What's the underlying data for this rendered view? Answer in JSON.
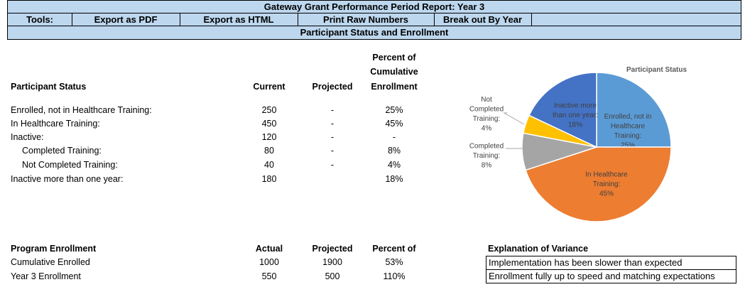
{
  "title": "Gateway Grant Performance Period Report: Year 3",
  "toolbar": {
    "label": "Tools:",
    "buttons": [
      "Export as PDF",
      "Export as HTML",
      "Print Raw Numbers",
      "Break out By Year"
    ]
  },
  "section_title": "Participant Status and Enrollment",
  "status_table": {
    "headers": {
      "label": "Participant Status",
      "current": "Current",
      "projected": "Projected",
      "percent": [
        "Percent of",
        "Cumulative",
        "Enrollment"
      ]
    },
    "rows": [
      {
        "label": "Enrolled, not in Healthcare Training:",
        "current": "250",
        "projected": "-",
        "percent": "25%"
      },
      {
        "label": "In Healthcare Training:",
        "current": "450",
        "projected": "-",
        "percent": "45%"
      },
      {
        "label": "Inactive:",
        "current": "120",
        "projected": "-",
        "percent": "-"
      },
      {
        "label": "Completed Training:",
        "current": "80",
        "projected": "-",
        "percent": "8%"
      },
      {
        "label": "Not Completed Training:",
        "current": "40",
        "projected": "-",
        "percent": "4%"
      },
      {
        "label": "Inactive more than one year:",
        "current": "180",
        "projected": "",
        "percent": "18%"
      }
    ]
  },
  "enrollment_table": {
    "headers": {
      "label": "Program Enrollment",
      "actual": "Actual",
      "projected": "Projected",
      "percent": "Percent of"
    },
    "rows": [
      {
        "label": "Cumulative Enrolled",
        "actual": "1000",
        "projected": "1900",
        "percent": "53%"
      },
      {
        "label": "Year 3 Enrollment",
        "actual": "550",
        "projected": "500",
        "percent": "110%"
      }
    ]
  },
  "variance": {
    "title": "Explanation of Variance",
    "items": [
      "Implementation has been slower than expected",
      "Enrollment fully up to speed and matching expectations"
    ]
  },
  "chart_data": {
    "type": "pie",
    "title": "Participant Status",
    "slices": [
      {
        "label": [
          "Enrolled, not in",
          "Healthcare",
          "Training:",
          "25%"
        ],
        "value": 25,
        "color": "#5b9bd5"
      },
      {
        "label": [
          "In Healthcare",
          "Training:",
          "45%"
        ],
        "value": 45,
        "color": "#ed7d31"
      },
      {
        "label": [
          "Completed",
          "Training:",
          "8%"
        ],
        "value": 8,
        "color": "#a5a5a5"
      },
      {
        "label": [
          "Not",
          "Completed",
          "Training:",
          "4%"
        ],
        "value": 4,
        "color": "#ffc000"
      },
      {
        "label": [
          "Inactive more",
          "than one year:",
          "18%"
        ],
        "value": 18,
        "color": "#4472c4"
      }
    ]
  }
}
